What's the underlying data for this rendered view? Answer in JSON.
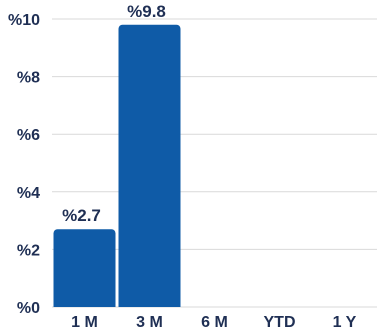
{
  "colors": {
    "bar": "#0f5ba7",
    "text": "#1f2f54",
    "grid": "#d9d9d9"
  },
  "chart_data": {
    "type": "bar",
    "categories": [
      "1 M",
      "3 M",
      "6 M",
      "YTD",
      "1 Y"
    ],
    "values": [
      2.7,
      9.8,
      0,
      0,
      0
    ],
    "data_labels": [
      "%2.7",
      "%9.8",
      "",
      "",
      ""
    ],
    "yticks": [
      0,
      2,
      4,
      6,
      8,
      10
    ],
    "ytick_labels": [
      "%0",
      "%2",
      "%4",
      "%6",
      "%8",
      "%10"
    ],
    "ylim": [
      0,
      10
    ],
    "grid": true,
    "legend": "none"
  }
}
